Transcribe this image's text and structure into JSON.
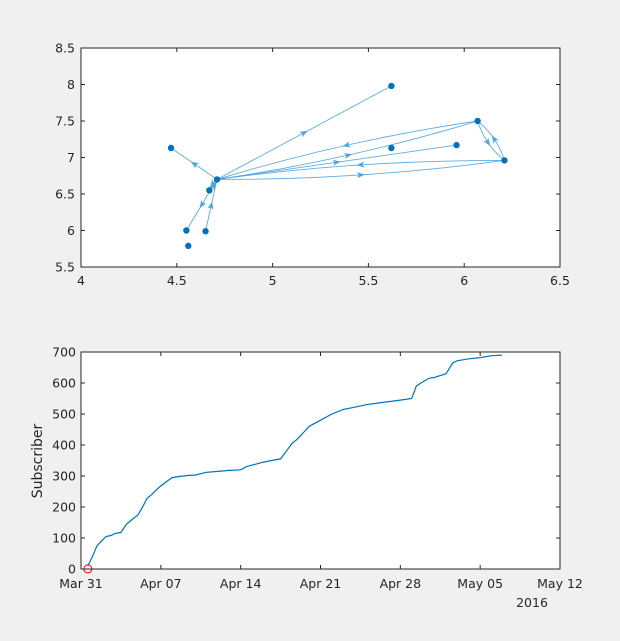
{
  "chart_data": [
    {
      "type": "scatter",
      "subtype": "directed-graph",
      "title": "",
      "xlabel": "",
      "ylabel": "",
      "xlim": [
        4,
        6.5
      ],
      "ylim": [
        5.5,
        8.5
      ],
      "xticks": [
        "4",
        "4.5",
        "5",
        "5.5",
        "6",
        "6.5"
      ],
      "yticks": [
        "5.5",
        "6",
        "6.5",
        "7",
        "7.5",
        "8",
        "8.5"
      ],
      "grid": false,
      "nodes": [
        {
          "id": "hub",
          "x": 4.71,
          "y": 6.7
        },
        {
          "id": "n1",
          "x": 4.47,
          "y": 7.13
        },
        {
          "id": "n2",
          "x": 4.67,
          "y": 6.55
        },
        {
          "id": "n3",
          "x": 4.55,
          "y": 6.0
        },
        {
          "id": "n4",
          "x": 4.65,
          "y": 5.99
        },
        {
          "id": "n5",
          "x": 4.56,
          "y": 5.79
        },
        {
          "id": "n6",
          "x": 5.62,
          "y": 7.98
        },
        {
          "id": "n7",
          "x": 5.62,
          "y": 7.13
        },
        {
          "id": "n8",
          "x": 5.96,
          "y": 7.17
        },
        {
          "id": "n9",
          "x": 6.07,
          "y": 7.5
        },
        {
          "id": "n10",
          "x": 6.21,
          "y": 6.96
        }
      ],
      "edges": [
        {
          "from": "hub",
          "to": "n6"
        },
        {
          "from": "hub",
          "to": "n1"
        },
        {
          "from": "hub",
          "to": "n3"
        },
        {
          "from": "n4",
          "to": "hub"
        },
        {
          "from": "hub",
          "to": "n2"
        },
        {
          "from": "n2",
          "to": "hub"
        },
        {
          "from": "hub",
          "to": "n9"
        },
        {
          "from": "n9",
          "to": "hub"
        },
        {
          "from": "hub",
          "to": "n8"
        },
        {
          "from": "hub",
          "to": "n10"
        },
        {
          "from": "n10",
          "to": "hub"
        },
        {
          "from": "n9",
          "to": "n10"
        },
        {
          "from": "n10",
          "to": "n9"
        }
      ],
      "color": "#0072bd",
      "edge_color": "#4da3e0"
    },
    {
      "type": "line",
      "title": "",
      "xlabel": "",
      "ylabel": "Subscriber",
      "ylim": [
        0,
        700
      ],
      "yticks": [
        "0",
        "100",
        "200",
        "300",
        "400",
        "500",
        "600",
        "700"
      ],
      "xticks": [
        "Mar 31",
        "Apr 07",
        "Apr 14",
        "Apr 21",
        "Apr 28",
        "May 05",
        "May 12"
      ],
      "x_secondary_label": "2016",
      "grid": false,
      "color": "#0072bd",
      "marker": {
        "x_day": 0.6,
        "y": 10,
        "color": "#ff0000",
        "shape": "circle"
      },
      "x_days_since_mar31": [
        0.6,
        1.0,
        1.4,
        1.8,
        2.2,
        2.6,
        3.0,
        3.5,
        4.0,
        4.5,
        5.0,
        5.4,
        5.8,
        6.2,
        6.6,
        7.0,
        7.5,
        8.0,
        8.5,
        9.0,
        9.5,
        10.0,
        11.0,
        12.0,
        13.0,
        14.0,
        14.5,
        15.0,
        16.0,
        17.0,
        17.5,
        18.0,
        18.5,
        19.0,
        19.5,
        20.0,
        20.5,
        21.0,
        22.0,
        23.0,
        24.0,
        25.0,
        26.0,
        27.0,
        28.0,
        29.0,
        29.4,
        29.8,
        30.5,
        31.0,
        32.0,
        32.6,
        33.0,
        33.5,
        34.0,
        35.0,
        36.0,
        36.9
      ],
      "values": [
        10,
        40,
        75,
        90,
        105,
        108,
        115,
        118,
        145,
        160,
        175,
        200,
        228,
        240,
        255,
        268,
        282,
        295,
        298,
        300,
        302,
        303,
        312,
        315,
        318,
        320,
        330,
        335,
        345,
        352,
        355,
        380,
        405,
        420,
        440,
        460,
        470,
        480,
        500,
        515,
        522,
        530,
        535,
        540,
        545,
        550,
        590,
        600,
        615,
        618,
        630,
        665,
        672,
        675,
        678,
        682,
        688,
        690
      ]
    }
  ],
  "top_chart": {
    "xticks": [
      "4",
      "4.5",
      "5",
      "5.5",
      "6",
      "6.5"
    ],
    "yticks": [
      "5.5",
      "6",
      "6.5",
      "7",
      "7.5",
      "8",
      "8.5"
    ]
  },
  "bottom_chart": {
    "ylabel": "Subscriber",
    "yticks": [
      "0",
      "100",
      "200",
      "300",
      "400",
      "500",
      "600",
      "700"
    ],
    "xticks": [
      "Mar 31",
      "Apr 07",
      "Apr 14",
      "Apr 21",
      "Apr 28",
      "May 05",
      "May 12"
    ],
    "year_label": "2016"
  }
}
